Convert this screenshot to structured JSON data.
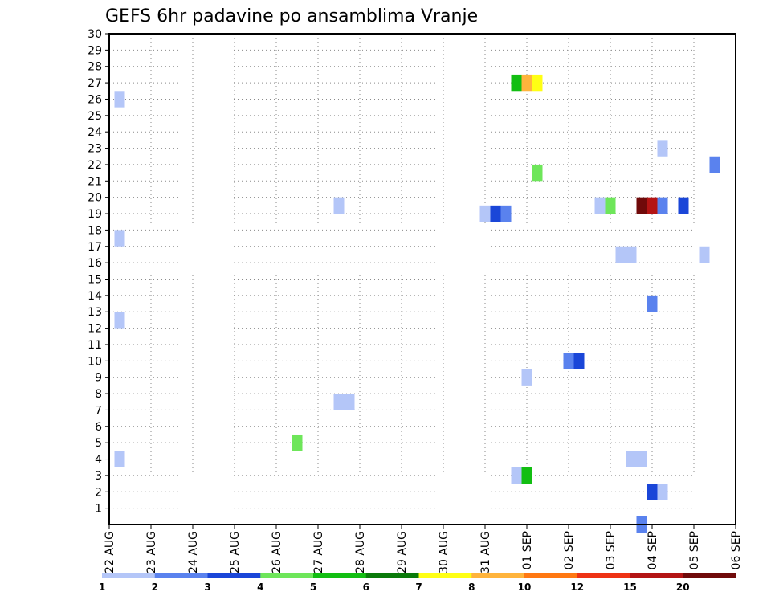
{
  "chart_data": {
    "type": "heatmap",
    "title": "GEFS 6hr padavine po ansamblima Vranje",
    "x_tick_labels": [
      "22 AUG",
      "23 AUG",
      "24 AUG",
      "25 AUG",
      "26 AUG",
      "27 AUG",
      "28 AUG",
      "29 AUG",
      "30 AUG",
      "31 AUG",
      "01 SEP",
      "02 SEP",
      "03 SEP",
      "04 SEP",
      "05 SEP",
      "06 SEP"
    ],
    "y_tick_labels": [
      "1",
      "2",
      "3",
      "4",
      "5",
      "6",
      "7",
      "8",
      "9",
      "10",
      "11",
      "12",
      "13",
      "14",
      "15",
      "16",
      "17",
      "18",
      "19",
      "20",
      "21",
      "22",
      "23",
      "24",
      "25",
      "26",
      "27",
      "28",
      "29",
      "30"
    ],
    "x_range_days": [
      0,
      15
    ],
    "y_range_members": [
      0,
      30
    ],
    "grid": true,
    "legend": {
      "placement": "bottom",
      "colors": [
        "#b4c6f8",
        "#5a82ee",
        "#1a46d8",
        "#6ee65a",
        "#12be12",
        "#0a7a0a",
        "#ffff14",
        "#ffb43c",
        "#ff7812",
        "#ee3214",
        "#b41414",
        "#700a0a"
      ],
      "labels": [
        "1",
        "2",
        "3",
        "4",
        "5",
        "6",
        "7",
        "8",
        "10",
        "12",
        "15",
        "20"
      ]
    },
    "cells": [
      {
        "day": 0.25,
        "member": 26,
        "color": "#b4c6f8"
      },
      {
        "day": 0.25,
        "member": 17.5,
        "color": "#b4c6f8"
      },
      {
        "day": 0.25,
        "member": 12.5,
        "color": "#b4c6f8"
      },
      {
        "day": 0.25,
        "member": 4,
        "color": "#b4c6f8"
      },
      {
        "day": 4.5,
        "member": 5,
        "color": "#6ee65a"
      },
      {
        "day": 5.5,
        "member": 19.5,
        "color": "#b4c6f8"
      },
      {
        "day": 5.5,
        "member": 7.5,
        "color": "#b4c6f8"
      },
      {
        "day": 5.75,
        "member": 7.5,
        "color": "#b4c6f8"
      },
      {
        "day": 9.0,
        "member": 19,
        "color": "#b4c6f8"
      },
      {
        "day": 9.25,
        "member": 19,
        "color": "#1a46d8"
      },
      {
        "day": 9.5,
        "member": 19,
        "color": "#5a82ee"
      },
      {
        "day": 9.75,
        "member": 27,
        "color": "#12be12"
      },
      {
        "day": 10.0,
        "member": 27,
        "color": "#ffb43c"
      },
      {
        "day": 10.25,
        "member": 27,
        "color": "#ffff14"
      },
      {
        "day": 10.25,
        "member": 21.5,
        "color": "#6ee65a"
      },
      {
        "day": 10.0,
        "member": 9,
        "color": "#b4c6f8"
      },
      {
        "day": 9.75,
        "member": 3,
        "color": "#b4c6f8"
      },
      {
        "day": 10.0,
        "member": 3,
        "color": "#12be12"
      },
      {
        "day": 11.0,
        "member": 10,
        "color": "#5a82ee"
      },
      {
        "day": 11.25,
        "member": 10,
        "color": "#1a46d8"
      },
      {
        "day": 11.75,
        "member": 19.5,
        "color": "#b4c6f8"
      },
      {
        "day": 12.0,
        "member": 19.5,
        "color": "#6ee65a"
      },
      {
        "day": 12.25,
        "member": 16.5,
        "color": "#b4c6f8"
      },
      {
        "day": 12.5,
        "member": 16.5,
        "color": "#b4c6f8"
      },
      {
        "day": 12.5,
        "member": 4,
        "color": "#b4c6f8"
      },
      {
        "day": 12.75,
        "member": 4,
        "color": "#b4c6f8"
      },
      {
        "day": 12.75,
        "member": 19.5,
        "color": "#700a0a"
      },
      {
        "day": 13.0,
        "member": 19.5,
        "color": "#b41414"
      },
      {
        "day": 13.25,
        "member": 19.5,
        "color": "#5a82ee"
      },
      {
        "day": 13.75,
        "member": 19.5,
        "color": "#1a46d8"
      },
      {
        "day": 13.25,
        "member": 23,
        "color": "#b4c6f8"
      },
      {
        "day": 13.0,
        "member": 13.5,
        "color": "#5a82ee"
      },
      {
        "day": 13.0,
        "member": 2,
        "color": "#1a46d8"
      },
      {
        "day": 13.25,
        "member": 2,
        "color": "#b4c6f8"
      },
      {
        "day": 12.75,
        "member": 0,
        "color": "#5a82ee"
      },
      {
        "day": 14.25,
        "member": 16.5,
        "color": "#b4c6f8"
      },
      {
        "day": 14.5,
        "member": 22,
        "color": "#5a82ee"
      }
    ]
  }
}
